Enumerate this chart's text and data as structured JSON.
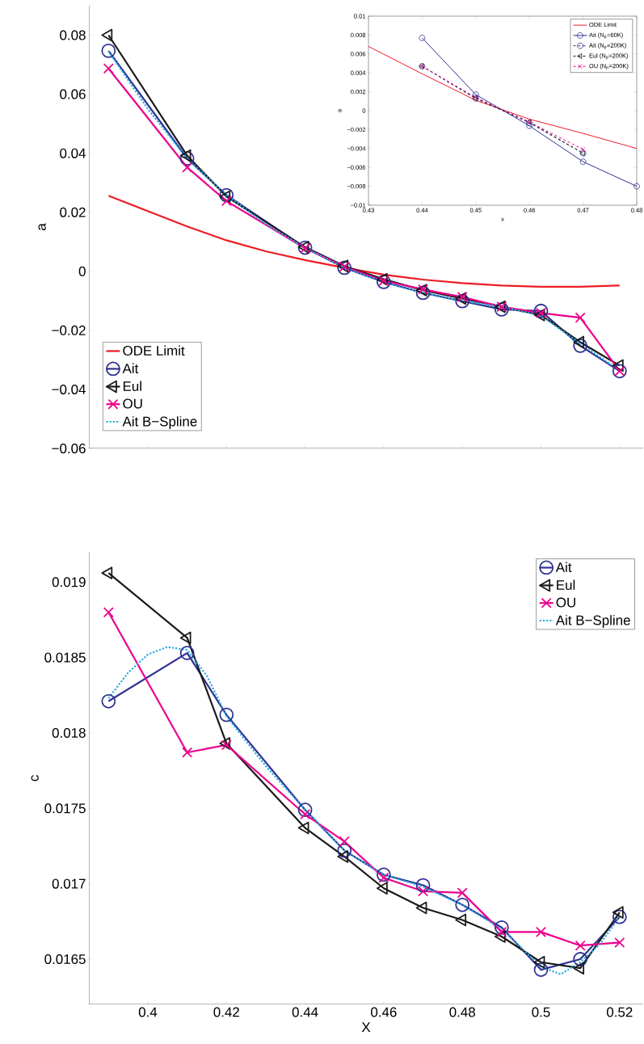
{
  "chart_data": [
    {
      "type": "line",
      "ylabel": "a",
      "x": [
        0.39,
        0.41,
        0.42,
        0.44,
        0.45,
        0.46,
        0.47,
        0.48,
        0.49,
        0.5,
        0.51,
        0.52
      ],
      "xlim": [
        0.385,
        0.526
      ],
      "xticks": [
        0.4,
        0.42,
        0.44,
        0.46,
        0.48,
        0.5,
        0.52
      ],
      "ylim": [
        -0.06,
        0.09
      ],
      "yticks": [
        {
          "value": -0.06,
          "label": "−0.06"
        },
        {
          "value": -0.04,
          "label": "−0.04"
        },
        {
          "value": -0.02,
          "label": "−0.02"
        },
        0,
        0.02,
        0.04,
        0.06,
        0.08
      ],
      "tick_labels": "y",
      "legend": "bottom left",
      "series": [
        {
          "name": "ODE Limit",
          "color": "#ed1c24",
          "marker": "none",
          "line_style": "solid",
          "x": [
            0.39,
            0.4,
            0.41,
            0.42,
            0.43,
            0.44,
            0.45,
            0.46,
            0.47,
            0.48,
            0.49,
            0.5,
            0.51,
            0.52
          ],
          "values": [
            0.0256,
            0.0204,
            0.0152,
            0.0105,
            0.0068,
            0.0038,
            0.0012,
            -0.0011,
            -0.0028,
            -0.004,
            -0.0048,
            -0.0052,
            -0.0052,
            -0.0048
          ]
        },
        {
          "name": "Ait",
          "color": "#2e3192",
          "marker": "circle",
          "line_style": "solid",
          "values": [
            0.0747,
            0.0382,
            0.0258,
            0.008,
            0.0012,
            -0.0036,
            -0.0073,
            -0.0101,
            -0.0129,
            -0.0134,
            -0.0252,
            -0.0338
          ]
        },
        {
          "name": "Eul",
          "color": "#1a1a1a",
          "marker": "triangle",
          "line_style": "solid",
          "values": [
            0.08,
            0.0392,
            0.0253,
            0.0082,
            0.0018,
            -0.0027,
            -0.0064,
            -0.0092,
            -0.012,
            -0.0148,
            -0.024,
            -0.0319
          ]
        },
        {
          "name": "OU",
          "color": "#ec008c",
          "marker": "cross",
          "line_style": "solid",
          "values": [
            0.0687,
            0.0352,
            0.0238,
            0.0078,
            0.0016,
            -0.0032,
            -0.0061,
            -0.0087,
            -0.012,
            -0.0141,
            -0.0157,
            -0.0338
          ]
        },
        {
          "name": "Ait B−Spline",
          "color": "#29abe2",
          "marker": "none",
          "line_style": "dotted",
          "x": [
            0.39,
            0.4,
            0.41,
            0.42,
            0.43,
            0.44,
            0.45,
            0.46,
            0.47,
            0.48,
            0.49,
            0.5,
            0.51,
            0.52
          ],
          "values": [
            0.0745,
            0.055,
            0.0382,
            0.0258,
            0.016,
            0.008,
            0.0012,
            -0.0036,
            -0.0073,
            -0.0101,
            -0.012,
            -0.015,
            -0.0245,
            -0.0336
          ]
        }
      ]
    },
    {
      "type": "line",
      "xlabel": "x",
      "ylabel": "a",
      "xlim": [
        0.43,
        0.48
      ],
      "xticks": [
        0.43,
        0.44,
        0.45,
        0.46,
        0.47,
        0.48
      ],
      "ylim": [
        -0.01,
        0.01
      ],
      "yticks": [
        {
          "value": -0.01,
          "label": "−0.01"
        },
        {
          "value": -0.008,
          "label": "−0.008"
        },
        {
          "value": -0.006,
          "label": "−0.006"
        },
        {
          "value": -0.004,
          "label": "−0.004"
        },
        {
          "value": -0.002,
          "label": "−0.002"
        },
        0,
        0.002,
        0.004,
        0.006,
        0.008,
        0.01
      ],
      "legend": "top right",
      "series": [
        {
          "name": "ODE Limit",
          "color": "#ed1c24",
          "marker": "none",
          "line_style": "solid",
          "x": [
            0.43,
            0.44,
            0.45,
            0.46,
            0.47,
            0.48
          ],
          "values": [
            0.0068,
            0.0039,
            0.0011,
            -0.0009,
            -0.0024,
            -0.004
          ]
        },
        {
          "name": "Ait (N$_{p}$=60K)",
          "color": "#2e3192",
          "marker": "circle",
          "line_style": "solid",
          "x": [
            0.44,
            0.45,
            0.46,
            0.47,
            0.48
          ],
          "values": [
            0.0077,
            0.0017,
            -0.0016,
            -0.0054,
            -0.008
          ]
        },
        {
          "name": "Ait (N$_{p}$=200K)",
          "color": "#2e3192",
          "marker": "circle",
          "line_style": "dashed",
          "x": [
            0.44,
            0.45,
            0.46,
            0.47
          ],
          "values": [
            0.0047,
            0.0013,
            -0.0013,
            -0.0045
          ]
        },
        {
          "name": "Eul (N$_{p}$=200K)",
          "color": "#1a1a1a",
          "marker": "triangle",
          "line_style": "dashed",
          "x": [
            0.44,
            0.45,
            0.46,
            0.47
          ],
          "values": [
            0.0047,
            0.0013,
            -0.0012,
            -0.0045
          ]
        },
        {
          "name": "OU (N$_{p}$=200K)",
          "color": "#ec008c",
          "marker": "cross",
          "line_style": "dashed",
          "x": [
            0.44,
            0.45,
            0.46,
            0.47
          ],
          "values": [
            0.0047,
            0.0014,
            -0.0012,
            -0.0041
          ]
        }
      ]
    },
    {
      "type": "line",
      "xlabel": "X",
      "ylabel": "c",
      "x": [
        0.39,
        0.41,
        0.42,
        0.44,
        0.45,
        0.46,
        0.47,
        0.48,
        0.49,
        0.5,
        0.51,
        0.52
      ],
      "xlim": [
        0.385,
        0.526
      ],
      "xticks": [
        0.4,
        0.42,
        0.44,
        0.46,
        0.48,
        0.5,
        0.52
      ],
      "ylim": [
        0.0162,
        0.0192
      ],
      "yticks": [
        0.0165,
        0.017,
        0.0175,
        0.018,
        0.0185,
        0.019
      ],
      "legend": "top right",
      "series": [
        {
          "name": "Ait",
          "color": "#2e3192",
          "marker": "circle",
          "line_style": "solid",
          "values": [
            0.01821,
            0.01853,
            0.01812,
            0.01749,
            0.01722,
            0.01706,
            0.01699,
            0.01686,
            0.01671,
            0.01643,
            0.0165,
            0.01678
          ]
        },
        {
          "name": "Eul",
          "color": "#1a1a1a",
          "marker": "triangle",
          "line_style": "solid",
          "values": [
            0.01906,
            0.01863,
            0.01793,
            0.01737,
            0.01718,
            0.01697,
            0.01684,
            0.01676,
            0.01665,
            0.01648,
            0.01644,
            0.01681
          ]
        },
        {
          "name": "OU",
          "color": "#ec008c",
          "marker": "cross",
          "line_style": "solid",
          "values": [
            0.0188,
            0.01787,
            0.01792,
            0.01746,
            0.01728,
            0.01704,
            0.01695,
            0.01694,
            0.01668,
            0.01668,
            0.01659,
            0.01661
          ]
        },
        {
          "name": "Ait B−Spline",
          "color": "#29abe2",
          "marker": "none",
          "line_style": "dotted",
          "x": [
            0.39,
            0.395,
            0.4,
            0.405,
            0.41,
            0.415,
            0.42,
            0.43,
            0.44,
            0.45,
            0.46,
            0.47,
            0.48,
            0.49,
            0.5,
            0.505,
            0.51,
            0.515,
            0.52
          ],
          "values": [
            0.01823,
            0.0184,
            0.01852,
            0.01857,
            0.01855,
            0.01838,
            0.01811,
            0.01778,
            0.01749,
            0.01722,
            0.01706,
            0.01698,
            0.01686,
            0.0167,
            0.01645,
            0.0164,
            0.01648,
            0.0166,
            0.01678
          ]
        }
      ]
    }
  ]
}
